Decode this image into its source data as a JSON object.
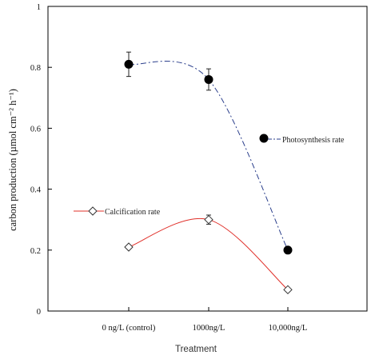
{
  "chart_data": {
    "type": "line",
    "xlabel": "Treatment",
    "ylabel": "carbon production (µmol cm⁻² h⁻¹)",
    "categories": [
      "0 ng/L (control)",
      "1000ng/L",
      "10,000ng/L"
    ],
    "ylim": [
      0,
      1
    ],
    "yticks": [
      "0",
      "0.2",
      "0.4",
      "0.6",
      "0.8",
      "1"
    ],
    "grid": false,
    "series": [
      {
        "name": "Photosynthesis rate",
        "values": [
          0.81,
          0.76,
          0.2
        ],
        "errors": [
          0.04,
          0.035,
          0.0
        ],
        "marker": "filled-circle",
        "line_style": "dash-dot",
        "color": "#2b3f8c"
      },
      {
        "name": "Calcification rate",
        "values": [
          0.21,
          0.3,
          0.07
        ],
        "errors": [
          0.0,
          0.015,
          0.0
        ],
        "marker": "open-diamond",
        "line_style": "solid",
        "color": "#e0302a"
      }
    ]
  }
}
